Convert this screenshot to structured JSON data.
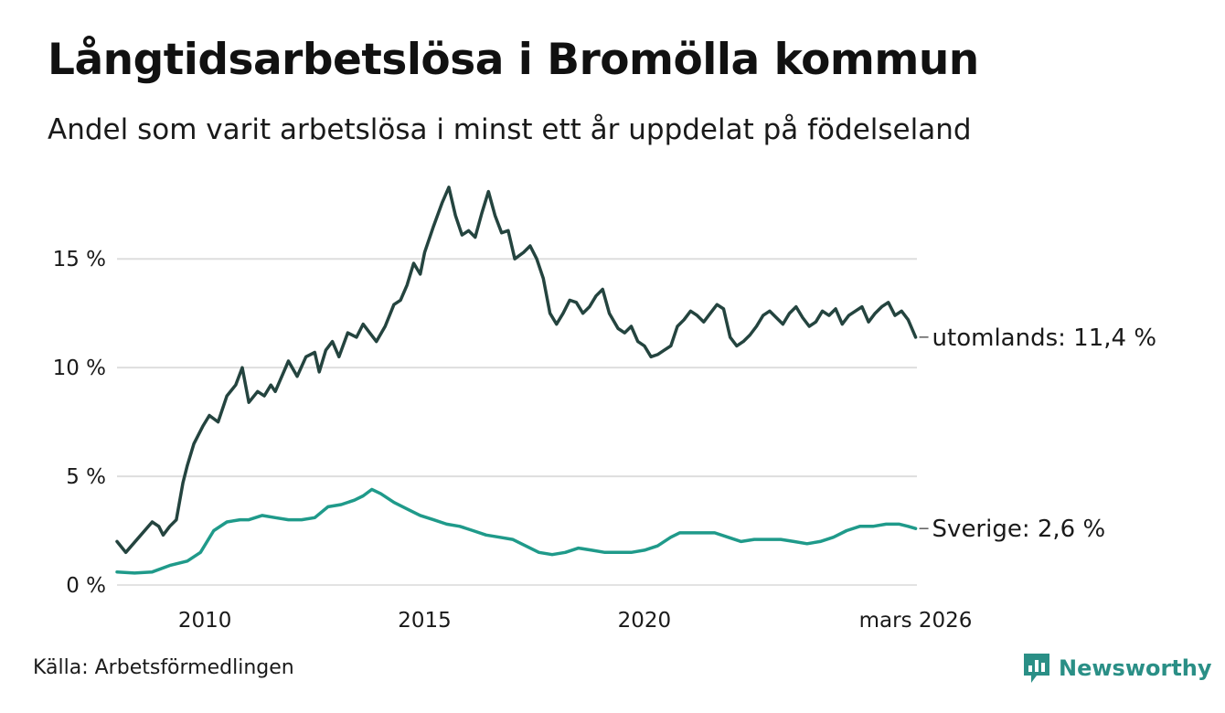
{
  "title": "Långtidsarbetslösa i Bromölla kommun",
  "subtitle": "Andel som varit arbetslösa i minst ett år uppdelat på födelseland",
  "source": "Källa: Arbetsförmedlingen",
  "brand": {
    "name": "Newsworthy",
    "color": "#2a8f86"
  },
  "chart_data": {
    "type": "line",
    "title": "Långtidsarbetslösa i Bromölla kommun",
    "xlabel": "",
    "ylabel": "",
    "xlim": [
      2008.0,
      2026.2
    ],
    "ylim": [
      0,
      18.5
    ],
    "grid": true,
    "yticks": [
      0,
      5,
      10,
      15
    ],
    "ytick_labels": [
      "0 %",
      "5 %",
      "10 %",
      "15 %"
    ],
    "xticks": [
      2010,
      2015,
      2020,
      2026.17
    ],
    "xtick_labels": [
      "2010",
      "2015",
      "2020",
      "mars 2026"
    ],
    "series": [
      {
        "name": "utomlands",
        "label": "utomlands: 11,4 %",
        "color": "#24443f",
        "x": [
          2008.0,
          2008.2,
          2008.5,
          2008.8,
          2008.95,
          2009.05,
          2009.2,
          2009.35,
          2009.5,
          2009.6,
          2009.75,
          2009.95,
          2010.1,
          2010.3,
          2010.5,
          2010.7,
          2010.85,
          2011.0,
          2011.2,
          2011.35,
          2011.5,
          2011.6,
          2011.75,
          2011.9,
          2012.1,
          2012.3,
          2012.5,
          2012.6,
          2012.75,
          2012.9,
          2013.05,
          2013.25,
          2013.45,
          2013.6,
          2013.75,
          2013.9,
          2014.1,
          2014.3,
          2014.45,
          2014.6,
          2014.75,
          2014.9,
          2015.0,
          2015.2,
          2015.4,
          2015.55,
          2015.7,
          2015.85,
          2016.0,
          2016.15,
          2016.3,
          2016.45,
          2016.6,
          2016.75,
          2016.9,
          2017.05,
          2017.25,
          2017.4,
          2017.55,
          2017.7,
          2017.85,
          2018.0,
          2018.15,
          2018.3,
          2018.45,
          2018.6,
          2018.75,
          2018.9,
          2019.05,
          2019.2,
          2019.4,
          2019.55,
          2019.7,
          2019.85,
          2020.0,
          2020.15,
          2020.3,
          2020.45,
          2020.6,
          2020.75,
          2020.9,
          2021.05,
          2021.2,
          2021.35,
          2021.5,
          2021.65,
          2021.8,
          2021.95,
          2022.1,
          2022.25,
          2022.4,
          2022.55,
          2022.7,
          2022.85,
          2023.0,
          2023.15,
          2023.3,
          2023.45,
          2023.6,
          2023.75,
          2023.9,
          2024.05,
          2024.2,
          2024.35,
          2024.5,
          2024.65,
          2024.8,
          2024.95,
          2025.1,
          2025.25,
          2025.4,
          2025.55,
          2025.7,
          2025.85,
          2026.0,
          2026.17
        ],
        "values": [
          2.0,
          1.5,
          2.2,
          2.9,
          2.7,
          2.3,
          2.7,
          3.0,
          4.7,
          5.5,
          6.5,
          7.3,
          7.8,
          7.5,
          8.7,
          9.2,
          10.0,
          8.4,
          8.9,
          8.7,
          9.2,
          8.9,
          9.6,
          10.3,
          9.6,
          10.5,
          10.7,
          9.8,
          10.8,
          11.2,
          10.5,
          11.6,
          11.4,
          12.0,
          11.6,
          11.2,
          11.9,
          12.9,
          13.1,
          13.8,
          14.8,
          14.3,
          15.3,
          16.5,
          17.6,
          18.3,
          17.0,
          16.1,
          16.3,
          16.0,
          17.1,
          18.1,
          17.0,
          16.2,
          16.3,
          15.0,
          15.3,
          15.6,
          15.0,
          14.1,
          12.5,
          12.0,
          12.5,
          13.1,
          13.0,
          12.5,
          12.8,
          13.3,
          13.6,
          12.5,
          11.8,
          11.6,
          11.9,
          11.2,
          11.0,
          10.5,
          10.6,
          10.8,
          11.0,
          11.9,
          12.2,
          12.6,
          12.4,
          12.1,
          12.5,
          12.9,
          12.7,
          11.4,
          11.0,
          11.2,
          11.5,
          11.9,
          12.4,
          12.6,
          12.3,
          12.0,
          12.5,
          12.8,
          12.3,
          11.9,
          12.1,
          12.6,
          12.4,
          12.7,
          12.0,
          12.4,
          12.6,
          12.8,
          12.1,
          12.5,
          12.8,
          13.0,
          12.4,
          12.6,
          12.2,
          11.4
        ]
      },
      {
        "name": "Sverige",
        "label": "Sverige:  2,6 %",
        "color": "#1f9a8a",
        "x": [
          2008.0,
          2008.4,
          2008.8,
          2009.2,
          2009.6,
          2009.9,
          2010.2,
          2010.5,
          2010.8,
          2011.0,
          2011.3,
          2011.6,
          2011.9,
          2012.2,
          2012.5,
          2012.8,
          2013.1,
          2013.4,
          2013.6,
          2013.8,
          2014.0,
          2014.3,
          2014.6,
          2014.9,
          2015.2,
          2015.5,
          2015.8,
          2016.1,
          2016.4,
          2016.7,
          2017.0,
          2017.3,
          2017.6,
          2017.9,
          2018.2,
          2018.5,
          2018.8,
          2019.1,
          2019.4,
          2019.7,
          2020.0,
          2020.3,
          2020.6,
          2020.8,
          2021.0,
          2021.3,
          2021.6,
          2021.9,
          2022.2,
          2022.5,
          2022.8,
          2023.1,
          2023.4,
          2023.7,
          2024.0,
          2024.3,
          2024.6,
          2024.9,
          2025.2,
          2025.5,
          2025.8,
          2026.0,
          2026.17
        ],
        "values": [
          0.6,
          0.55,
          0.6,
          0.9,
          1.1,
          1.5,
          2.5,
          2.9,
          3.0,
          3.0,
          3.2,
          3.1,
          3.0,
          3.0,
          3.1,
          3.6,
          3.7,
          3.9,
          4.1,
          4.4,
          4.2,
          3.8,
          3.5,
          3.2,
          3.0,
          2.8,
          2.7,
          2.5,
          2.3,
          2.2,
          2.1,
          1.8,
          1.5,
          1.4,
          1.5,
          1.7,
          1.6,
          1.5,
          1.5,
          1.5,
          1.6,
          1.8,
          2.2,
          2.4,
          2.4,
          2.4,
          2.4,
          2.2,
          2.0,
          2.1,
          2.1,
          2.1,
          2.0,
          1.9,
          2.0,
          2.2,
          2.5,
          2.7,
          2.7,
          2.8,
          2.8,
          2.7,
          2.6
        ]
      }
    ]
  }
}
